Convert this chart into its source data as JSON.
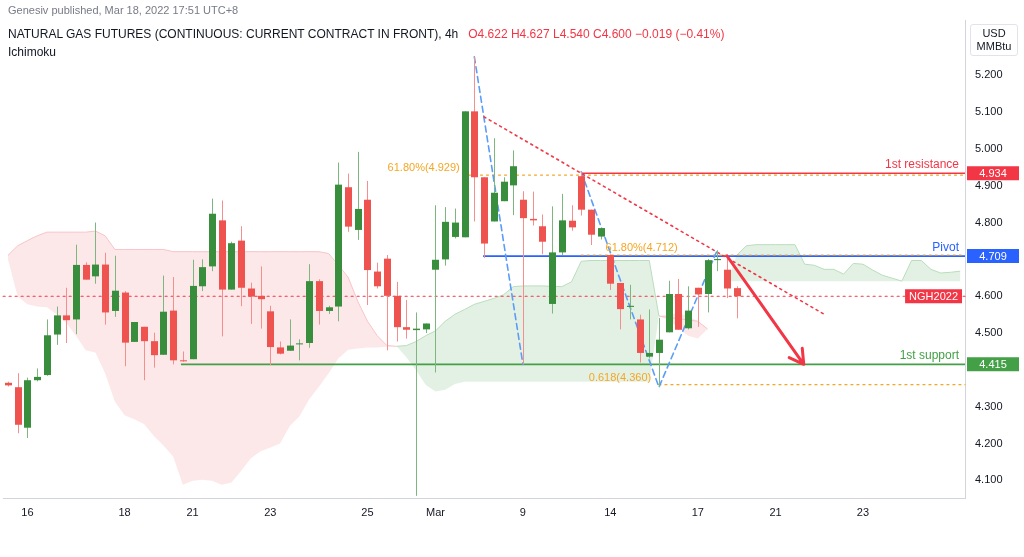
{
  "chart_data": {
    "type": "candlestick",
    "title": "NATURAL GAS FUTURES (CONTINUOUS: CURRENT CONTRACT IN FRONT), 4h",
    "subtitle": "O4.622 H4.627 L4.540 C4.600 −0.019 (−0.41%)",
    "ylabel": "USD MMBtu",
    "annotations": [
      "Genesiv published, Mar 18, 2022 17:51 UTC+8",
      "Ichimoku",
      "4.934",
      "4.709",
      "4.415"
    ],
    "categories": [
      null,
      null,
      "16",
      null,
      null,
      null,
      null,
      null,
      null,
      null,
      null,
      null,
      "18",
      null,
      null,
      null,
      null,
      null,
      null,
      "21",
      null,
      null,
      null,
      null,
      null,
      null,
      null,
      "23",
      null,
      null,
      null,
      null,
      null,
      null,
      null,
      null,
      null,
      "25",
      null,
      null,
      null,
      null,
      null,
      null,
      "Mar",
      null,
      null,
      null,
      null,
      null,
      null,
      null,
      null,
      "9",
      null,
      null,
      null,
      null,
      null,
      null,
      null,
      null,
      "14",
      null,
      null,
      null,
      null,
      null,
      null,
      null,
      null,
      "17",
      null,
      null,
      null,
      null,
      null,
      null,
      null,
      "21",
      null,
      null,
      null,
      null,
      null,
      null,
      null,
      null,
      "23",
      null,
      null,
      null,
      null,
      null,
      null,
      null,
      null,
      null,
      null
    ],
    "ohlc": [
      [
        4.365,
        4.368,
        4.355,
        4.358
      ],
      [
        4.353,
        4.391,
        4.228,
        4.251
      ],
      [
        4.243,
        4.379,
        4.215,
        4.372
      ],
      [
        4.372,
        4.404,
        4.369,
        4.381
      ],
      [
        4.386,
        4.537,
        4.384,
        4.494
      ],
      [
        4.496,
        4.572,
        4.468,
        4.548
      ],
      [
        4.548,
        4.623,
        4.473,
        4.535
      ],
      [
        4.537,
        4.74,
        4.497,
        4.685
      ],
      [
        4.685,
        4.692,
        4.645,
        4.645
      ],
      [
        4.654,
        4.8,
        4.634,
        4.686
      ],
      [
        4.686,
        4.718,
        4.523,
        4.556
      ],
      [
        4.56,
        4.71,
        4.544,
        4.615
      ],
      [
        4.61,
        4.614,
        4.41,
        4.474
      ],
      [
        4.476,
        4.53,
        4.476,
        4.53
      ],
      [
        4.517,
        4.517,
        4.372,
        4.478
      ],
      [
        4.478,
        4.501,
        4.406,
        4.44
      ],
      [
        4.441,
        4.656,
        4.441,
        4.558
      ],
      [
        4.561,
        4.652,
        4.415,
        4.426
      ],
      [
        4.426,
        4.45,
        4.422,
        4.424
      ],
      [
        4.429,
        4.699,
        4.429,
        4.628
      ],
      [
        4.627,
        4.7,
        4.614,
        4.679
      ],
      [
        4.681,
        4.865,
        4.668,
        4.824
      ],
      [
        4.806,
        4.86,
        4.491,
        4.618
      ],
      [
        4.618,
        4.748,
        4.618,
        4.744
      ],
      [
        4.751,
        4.79,
        4.573,
        4.623
      ],
      [
        4.621,
        4.637,
        4.525,
        4.599
      ],
      [
        4.601,
        4.681,
        4.512,
        4.592
      ],
      [
        4.559,
        4.574,
        4.413,
        4.462
      ],
      [
        4.461,
        4.477,
        4.442,
        4.444
      ],
      [
        4.452,
        4.537,
        4.452,
        4.466
      ],
      [
        4.47,
        4.483,
        4.426,
        4.472
      ],
      [
        4.473,
        4.687,
        4.46,
        4.641
      ],
      [
        4.641,
        4.646,
        4.523,
        4.56
      ],
      [
        4.56,
        4.574,
        4.552,
        4.57
      ],
      [
        4.572,
        4.963,
        4.532,
        4.903
      ],
      [
        4.896,
        4.933,
        4.775,
        4.789
      ],
      [
        4.78,
        4.992,
        4.753,
        4.837
      ],
      [
        4.862,
        4.913,
        4.576,
        4.671
      ],
      [
        4.667,
        4.691,
        4.621,
        4.627
      ],
      [
        4.702,
        4.712,
        4.453,
        4.601
      ],
      [
        4.601,
        4.639,
        4.477,
        4.516
      ],
      [
        4.516,
        4.59,
        4.485,
        4.509
      ],
      [
        4.508,
        4.556,
        4.058,
        4.512
      ],
      [
        4.51,
        4.526,
        4.5,
        4.526
      ],
      [
        4.672,
        4.847,
        4.393,
        4.699
      ],
      [
        4.7,
        4.842,
        4.683,
        4.802
      ],
      [
        4.761,
        4.838,
        4.757,
        4.8
      ],
      [
        4.76,
        5.102,
        4.76,
        5.102
      ],
      [
        5.102,
        5.25,
        4.803,
        4.923
      ],
      [
        4.923,
        4.923,
        4.704,
        4.743
      ],
      [
        4.803,
        5.029,
        4.803,
        4.881
      ],
      [
        4.858,
        4.923,
        4.858,
        4.911
      ],
      [
        4.901,
        4.996,
        4.82,
        4.953
      ],
      [
        4.862,
        4.885,
        4.415,
        4.812
      ],
      [
        4.81,
        4.884,
        4.792,
        4.806
      ],
      [
        4.79,
        4.822,
        4.714,
        4.748
      ],
      [
        4.579,
        4.844,
        4.553,
        4.719
      ],
      [
        4.719,
        4.878,
        4.712,
        4.806
      ],
      [
        4.805,
        4.847,
        4.778,
        4.787
      ],
      [
        4.926,
        4.938,
        4.819,
        4.835
      ],
      [
        4.835,
        4.835,
        4.739,
        4.767
      ],
      [
        4.762,
        4.785,
        4.754,
        4.785
      ],
      [
        4.712,
        4.714,
        4.617,
        4.634
      ],
      [
        4.636,
        4.636,
        4.51,
        4.565
      ],
      [
        4.571,
        4.631,
        4.537,
        4.574
      ],
      [
        4.537,
        4.55,
        4.42,
        4.446
      ],
      [
        4.436,
        4.564,
        4.431,
        4.446
      ],
      [
        4.446,
        4.541,
        4.353,
        4.482
      ],
      [
        4.502,
        4.642,
        4.502,
        4.606
      ],
      [
        4.606,
        4.647,
        4.509,
        4.509
      ],
      [
        4.513,
        4.627,
        4.51,
        4.561
      ],
      [
        4.623,
        4.623,
        4.517,
        4.605
      ],
      [
        4.606,
        4.701,
        4.556,
        4.698
      ],
      [
        4.698,
        4.725,
        4.668,
        4.701
      ],
      [
        4.672,
        4.714,
        4.595,
        4.621
      ],
      [
        4.622,
        4.627,
        4.54,
        4.6
      ],
      null,
      null,
      null,
      null,
      null,
      null,
      null,
      null,
      null,
      null,
      null,
      null,
      null,
      null,
      null,
      null,
      null,
      null,
      null,
      null,
      null,
      null,
      null
    ],
    "colors": [
      "#ef5350",
      "#ef5350",
      "#388e3c",
      "#388e3c",
      "#388e3c",
      "#388e3c",
      "#ef5350",
      "#388e3c",
      "#ef5350",
      "#388e3c",
      "#ef5350",
      "#388e3c",
      "#ef5350",
      "#388e3c",
      "#ef5350",
      "#ef5350",
      "#388e3c",
      "#ef5350",
      "#ef5350",
      "#388e3c",
      "#388e3c",
      "#388e3c",
      "#ef5350",
      "#388e3c",
      "#ef5350",
      "#ef5350",
      "#ef5350",
      "#ef5350",
      "#ef5350",
      "#388e3c",
      "#388e3c",
      "#388e3c",
      "#ef5350",
      "#388e3c",
      "#388e3c",
      "#ef5350",
      "#388e3c",
      "#ef5350",
      "#ef5350",
      "#ef5350",
      "#ef5350",
      "#ef5350",
      "#388e3c",
      "#388e3c",
      "#388e3c",
      "#388e3c",
      "#388e3c",
      "#388e3c",
      "#ef5350",
      "#ef5350",
      "#388e3c",
      "#388e3c",
      "#388e3c",
      "#ef5350",
      "#ef5350",
      "#ef5350",
      "#388e3c",
      "#388e3c",
      "#ef5350",
      "#ef5350",
      "#ef5350",
      "#388e3c",
      "#ef5350",
      "#ef5350",
      "#388e3c",
      "#ef5350",
      "#388e3c",
      "#388e3c",
      "#388e3c",
      "#ef5350",
      "#388e3c",
      "#ef5350",
      "#388e3c",
      "#388e3c",
      "#ef5350",
      "#ef5350",
      null,
      null,
      null,
      null,
      null,
      null,
      null,
      null,
      null,
      null,
      null,
      null,
      null,
      null,
      null,
      null,
      null,
      null,
      null,
      null,
      null,
      null,
      null
    ],
    "series": [
      {
        "type": "line",
        "color": "#f8c4c7",
        "values": [
          4.711,
          4.737,
          4.751,
          4.764,
          4.774,
          4.774,
          4.774,
          4.774,
          4.774,
          4.777,
          4.764,
          4.727,
          4.727,
          4.727,
          4.727,
          4.727,
          4.727,
          4.721,
          4.721,
          4.721,
          4.721,
          null,
          null,
          null,
          null,
          4.721,
          4.721,
          4.721,
          4.721,
          4.721,
          4.721,
          4.721,
          4.721,
          4.716,
          null,
          4.652,
          4.586,
          4.532,
          4.493,
          4.466,
          4.464,
          null,
          null,
          null,
          null,
          null,
          null,
          null,
          null,
          null,
          null,
          null,
          null,
          null,
          null,
          null,
          null,
          null,
          null,
          null,
          null,
          null,
          null,
          null,
          null,
          null,
          null,
          4.546,
          null,
          null,
          null,
          4.532,
          4.511,
          null,
          null,
          null,
          null,
          null,
          null,
          null,
          null,
          null,
          null,
          null,
          null,
          null,
          null,
          null,
          null,
          null,
          null,
          null,
          null,
          null,
          null,
          null,
          null,
          null,
          null
        ],
        "upper": [
          4.711,
          4.737,
          4.751,
          4.764,
          4.774,
          4.774,
          4.774,
          4.774,
          4.774,
          4.777,
          4.764,
          4.727,
          4.727,
          4.727,
          4.727,
          4.727,
          4.727,
          4.721,
          4.721,
          4.721,
          4.721,
          4.721,
          4.721,
          4.721,
          4.721,
          4.721,
          4.721,
          4.721,
          4.721,
          4.721,
          4.721,
          4.721,
          4.721,
          4.716,
          4.679,
          4.652,
          4.586,
          4.532,
          4.493,
          4.466,
          4.464,
          null,
          null,
          null,
          null,
          null,
          null,
          null,
          null,
          null,
          null,
          null,
          null,
          null,
          null,
          null,
          null,
          null,
          null,
          null,
          null,
          null,
          null,
          null,
          null,
          null,
          null,
          4.546,
          4.551,
          4.554,
          4.546,
          4.532,
          4.511,
          null,
          null,
          null,
          null,
          null,
          null,
          null,
          null,
          null,
          null,
          null,
          null,
          null,
          null,
          null,
          null,
          null,
          null,
          null,
          null,
          null,
          null,
          null,
          null,
          null,
          null
        ],
        "lower": [
          4.7,
          4.599,
          4.578,
          4.572,
          4.57,
          4.551,
          4.527,
          4.493,
          4.453,
          4.447,
          4.391,
          4.314,
          4.277,
          4.266,
          4.253,
          4.221,
          4.195,
          4.165,
          4.088,
          4.099,
          4.102,
          4.099,
          4.088,
          4.094,
          4.126,
          4.16,
          4.179,
          4.189,
          4.2,
          4.248,
          4.274,
          4.32,
          4.354,
          4.391,
          4.431,
          4.455,
          4.458,
          4.461,
          4.461,
          4.463,
          4.464,
          null,
          null,
          null,
          null,
          null,
          null,
          null,
          null,
          null,
          null,
          null,
          null,
          null,
          null,
          null,
          null,
          null,
          null,
          null,
          null,
          null,
          null,
          null,
          null,
          null,
          null,
          4.546,
          4.535,
          4.514,
          4.493,
          4.485,
          4.511,
          null,
          null,
          null,
          null,
          null,
          null,
          null,
          null,
          null,
          null,
          null,
          null,
          null,
          null,
          null,
          null,
          null,
          null,
          null,
          null,
          null,
          null,
          null,
          null,
          null,
          null
        ]
      },
      {
        "type": "line",
        "color": "#b9ddbb",
        "values": [
          null,
          null,
          null,
          null,
          null,
          null,
          null,
          null,
          null,
          null,
          null,
          null,
          null,
          null,
          null,
          null,
          null,
          null,
          null,
          null,
          null,
          null,
          null,
          null,
          null,
          null,
          null,
          null,
          null,
          null,
          null,
          null,
          null,
          null,
          null,
          null,
          null,
          null,
          null,
          null,
          4.464,
          4.466,
          4.477,
          4.493,
          4.506,
          4.532,
          4.551,
          4.564,
          4.578,
          4.586,
          4.594,
          4.604,
          4.626,
          4.628,
          4.628,
          4.628,
          null,
          4.626,
          4.639,
          4.695,
          4.697,
          4.697,
          null,
          4.697,
          4.697,
          4.697,
          4.697,
          4.546,
          null,
          null,
          null,
          null,
          null,
          null,
          null,
          4.711,
          4.737,
          4.74,
          4.74,
          4.74,
          4.74,
          4.74,
          4.687,
          4.684,
          4.673,
          4.673,
          4.66,
          4.689,
          4.687,
          4.671,
          4.657,
          4.649,
          4.641,
          4.697,
          4.697,
          4.673,
          4.663,
          4.665,
          4.668
        ],
        "upper": [
          null,
          null,
          null,
          null,
          null,
          null,
          null,
          null,
          null,
          null,
          null,
          null,
          null,
          null,
          null,
          null,
          null,
          null,
          null,
          null,
          null,
          null,
          null,
          null,
          null,
          null,
          null,
          null,
          null,
          null,
          null,
          null,
          null,
          null,
          null,
          null,
          null,
          null,
          null,
          null,
          4.464,
          4.466,
          4.477,
          4.493,
          4.506,
          4.532,
          4.551,
          4.564,
          4.578,
          4.586,
          4.594,
          4.604,
          4.626,
          4.628,
          4.628,
          4.628,
          4.628,
          4.626,
          4.639,
          4.695,
          4.697,
          4.697,
          4.697,
          4.697,
          4.697,
          4.697,
          4.697,
          4.546,
          null,
          null,
          null,
          null,
          null,
          null,
          4.641,
          4.711,
          4.737,
          4.74,
          4.74,
          4.74,
          4.74,
          4.74,
          4.687,
          4.684,
          4.673,
          4.673,
          4.66,
          4.689,
          4.687,
          4.671,
          4.657,
          4.649,
          4.641,
          4.697,
          4.697,
          4.673,
          4.663,
          4.665,
          4.668
        ],
        "lower": [
          null,
          null,
          null,
          null,
          null,
          null,
          null,
          null,
          null,
          null,
          null,
          null,
          null,
          null,
          null,
          null,
          null,
          null,
          null,
          null,
          null,
          null,
          null,
          null,
          null,
          null,
          null,
          null,
          null,
          null,
          null,
          null,
          null,
          null,
          null,
          null,
          null,
          null,
          null,
          null,
          4.464,
          4.434,
          4.399,
          4.359,
          4.341,
          4.346,
          4.362,
          4.368,
          4.368,
          4.368,
          4.368,
          4.368,
          4.368,
          4.368,
          4.368,
          4.368,
          4.368,
          4.368,
          4.368,
          4.368,
          4.368,
          4.368,
          4.368,
          4.368,
          4.368,
          4.368,
          4.368,
          4.546,
          null,
          null,
          null,
          null,
          null,
          null,
          4.641,
          4.641,
          4.641,
          4.641,
          4.641,
          4.641,
          4.641,
          4.641,
          4.641,
          4.641,
          4.641,
          4.641,
          4.641,
          4.641,
          4.641,
          4.641,
          4.641,
          4.641,
          4.641,
          4.641,
          4.641,
          4.641,
          4.641,
          4.641,
          4.641
        ]
      },
      {
        "type": "line",
        "color": "#f23645",
        "line_style": "dotted",
        "values": [
          null,
          null,
          null,
          null,
          null,
          null,
          null,
          null,
          null,
          null,
          null,
          null,
          null,
          null,
          null,
          null,
          null,
          null,
          null,
          null,
          null,
          null,
          null,
          null,
          null,
          null,
          null,
          null,
          null,
          null,
          null,
          null,
          null,
          null,
          null,
          null,
          null,
          null,
          null,
          null,
          null,
          null,
          null,
          null,
          null,
          null,
          null,
          null,
          null,
          5.087,
          null,
          null,
          null,
          null,
          null,
          null,
          null,
          null,
          null,
          null,
          null,
          null,
          null,
          null,
          null,
          null,
          null,
          null,
          null,
          null,
          null,
          null,
          null,
          null,
          null,
          null,
          null,
          null,
          null,
          null,
          null,
          null,
          null,
          null,
          4.551,
          null,
          null,
          null,
          null,
          null,
          null,
          null,
          null,
          null,
          null,
          null,
          null,
          null,
          null
        ]
      },
      {
        "type": "line",
        "color": "#5b9cf6",
        "line_style": "dashed",
        "values": [
          null,
          null,
          null,
          null,
          null,
          null,
          null,
          null,
          null,
          null,
          null,
          null,
          null,
          null,
          null,
          null,
          null,
          null,
          null,
          null,
          null,
          null,
          null,
          null,
          null,
          null,
          null,
          null,
          null,
          null,
          null,
          null,
          null,
          null,
          null,
          null,
          null,
          null,
          null,
          null,
          null,
          null,
          null,
          null,
          null,
          null,
          null,
          null,
          5.25,
          null,
          null,
          null,
          null,
          4.415,
          null,
          null,
          null,
          null,
          null,
          null,
          null,
          null,
          null,
          null,
          null,
          null,
          null,
          null,
          null,
          null,
          null,
          null,
          null,
          null,
          null,
          null,
          null,
          null,
          null,
          null,
          null,
          null,
          null,
          null,
          null,
          null,
          null,
          null,
          null,
          null,
          null,
          null,
          null,
          null,
          null,
          null,
          null,
          null,
          null
        ]
      },
      {
        "type": "line",
        "color": "#5b9cf6",
        "line_style": "dashed",
        "values": [
          null,
          null,
          null,
          null,
          null,
          null,
          null,
          null,
          null,
          null,
          null,
          null,
          null,
          null,
          null,
          null,
          null,
          null,
          null,
          null,
          null,
          null,
          null,
          null,
          null,
          null,
          null,
          null,
          null,
          null,
          null,
          null,
          null,
          null,
          null,
          null,
          null,
          null,
          null,
          null,
          null,
          null,
          null,
          null,
          null,
          null,
          null,
          null,
          null,
          null,
          null,
          null,
          null,
          null,
          null,
          null,
          null,
          null,
          null,
          4.938,
          null,
          null,
          null,
          null,
          null,
          null,
          null,
          4.353,
          null,
          null,
          null,
          null,
          null,
          4.725,
          null,
          null,
          null,
          null,
          null,
          null,
          null,
          null,
          null,
          null,
          null,
          null,
          null,
          null,
          null,
          null,
          null,
          null,
          null,
          null,
          null,
          null,
          null,
          null,
          null
        ]
      }
    ],
    "ylim": [
      4.05,
      5.35
    ],
    "yticks": [
      {
        "value": 4.1,
        "label": "4.100"
      },
      {
        "value": 4.2,
        "label": "4.200"
      },
      {
        "value": 4.3,
        "label": "4.300"
      },
      {
        "value": 4.5,
        "label": "4.500"
      },
      {
        "value": 4.6,
        "label": "4.600"
      },
      {
        "value": 4.8,
        "label": "4.800"
      },
      {
        "value": 4.9,
        "label": "4.900"
      },
      {
        "value": 5.0,
        "label": "5.000"
      },
      {
        "value": 5.1,
        "label": "5.100"
      },
      {
        "value": 5.2,
        "label": "5.200"
      }
    ],
    "ref_lines": [
      {
        "axis": "y",
        "value": 4.934,
        "label": "1st resistance",
        "color": "#f23645"
      },
      {
        "axis": "y",
        "value": 4.709,
        "label": "Pivot",
        "color": "#2962ff"
      },
      {
        "axis": "y",
        "value": 4.415,
        "label": "1st support",
        "color": "#43a047"
      },
      {
        "axis": "y",
        "value": 4.6,
        "label": "NGH2022",
        "color": "#f23645",
        "line_style": "dotted"
      },
      {
        "axis": "y",
        "value": 4.929,
        "label": "61.80%(4.929)",
        "color": "#f5a623",
        "line_style": "dotted"
      },
      {
        "axis": "y",
        "value": 4.712,
        "label": "61.80%(4.712)",
        "color": "#f5a623",
        "line_style": "dotted"
      },
      {
        "axis": "y",
        "value": 4.36,
        "label": "0.618(4.360)",
        "color": "#f5a623",
        "line_style": "dotted"
      }
    ]
  }
}
